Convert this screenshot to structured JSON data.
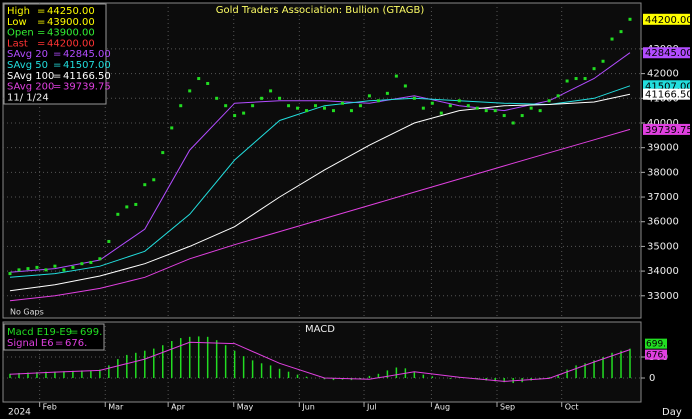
{
  "chart_data": [
    {
      "type": "price",
      "title": "Gold Traders Association: Bullion (GTAGB)",
      "date": "11/ 1/24",
      "note": "No Gaps",
      "year": "2024",
      "x_label": "Day",
      "sep": "=",
      "grid": true,
      "xlim": [
        0,
        69
      ],
      "ylim": [
        32100,
        44860
      ],
      "yticks": [
        33000,
        34000,
        35000,
        36000,
        37000,
        38000,
        39000,
        40000,
        41000,
        42000,
        43000
      ],
      "xticks": [
        {
          "value": 3.3,
          "label": "Feb"
        },
        {
          "value": 10.6,
          "label": "Mar"
        },
        {
          "value": 17.6,
          "label": "Apr"
        },
        {
          "value": 24.9,
          "label": "May"
        },
        {
          "value": 32.2,
          "label": "Jun"
        },
        {
          "value": 39.4,
          "label": "Jul"
        },
        {
          "value": 46.9,
          "label": "Aug"
        },
        {
          "value": 54.2,
          "label": "Sep"
        },
        {
          "value": 61.4,
          "label": "Oct"
        }
      ],
      "color": "#22dd22",
      "values": [
        33900,
        34050,
        34100,
        34150,
        34050,
        34200,
        34050,
        34150,
        34300,
        34350,
        34500,
        35200,
        36300,
        36600,
        36700,
        37500,
        37700,
        38800,
        39800,
        40700,
        41300,
        41800,
        41600,
        41000,
        40700,
        40300,
        40400,
        40700,
        41000,
        41300,
        41000,
        40700,
        40600,
        40500,
        40700,
        40600,
        40500,
        40800,
        40500,
        40700,
        41100,
        40900,
        41200,
        41900,
        41500,
        41000,
        40600,
        40800,
        40400,
        40700,
        40900,
        40700,
        40600,
        40500,
        40500,
        40300,
        40000,
        40300,
        40600,
        40500,
        40900,
        41100,
        41700,
        41800,
        41800,
        42200,
        42500,
        43400,
        43700,
        44200
      ],
      "stats": [
        {
          "name": "High",
          "value": 44250,
          "label": "44250.00",
          "color": "#ffff00"
        },
        {
          "name": "Low",
          "value": 43900,
          "label": "43900.00",
          "color": "#ffff00"
        },
        {
          "name": "Open",
          "value": 43900,
          "label": "43900.00",
          "color": "#33ee33"
        },
        {
          "name": "Last",
          "value": 44200,
          "label": "44200.00",
          "color": "#ff3333",
          "tag_color": "#ffff00"
        }
      ],
      "series": [
        {
          "name": "SAvg 20",
          "color": "#b24cff",
          "last": 42845,
          "last_label": "42845.00",
          "x": [
            0,
            5,
            10,
            15,
            20,
            25,
            30,
            35,
            40,
            45,
            50,
            55,
            60,
            65,
            69
          ],
          "values": [
            33950,
            34100,
            34450,
            35700,
            38900,
            40800,
            40900,
            40900,
            40800,
            41100,
            40700,
            40500,
            40900,
            41800,
            42845
          ]
        },
        {
          "name": "SAvg 50",
          "color": "#22dddd",
          "last": 41507,
          "last_label": "41507.00",
          "x": [
            0,
            5,
            10,
            15,
            20,
            25,
            30,
            35,
            40,
            45,
            50,
            55,
            60,
            65,
            69
          ],
          "values": [
            33750,
            33900,
            34200,
            34800,
            36300,
            38500,
            40100,
            40700,
            40900,
            41000,
            40900,
            40800,
            40750,
            41000,
            41507
          ]
        },
        {
          "name": "SAvg 100",
          "color": "#ffffff",
          "last": 41166.5,
          "last_label": "41166.50",
          "x": [
            0,
            5,
            10,
            15,
            20,
            25,
            30,
            35,
            40,
            45,
            50,
            55,
            60,
            65,
            69
          ],
          "values": [
            33200,
            33450,
            33800,
            34300,
            35000,
            35800,
            37000,
            38100,
            39100,
            40000,
            40500,
            40700,
            40750,
            40850,
            41166.5
          ]
        },
        {
          "name": "SAvg 200",
          "color": "#e040e0",
          "last": 39739.75,
          "last_label": "39739.75",
          "x": [
            0,
            5,
            10,
            15,
            20,
            25,
            30,
            35,
            40,
            45,
            50,
            55,
            60,
            65,
            69
          ],
          "values": [
            32800,
            33000,
            33300,
            33750,
            34500,
            35070,
            35600,
            36130,
            36660,
            37200,
            37730,
            38260,
            38790,
            39320,
            39739.75
          ]
        }
      ]
    },
    {
      "type": "macd",
      "title": "MACD",
      "sep": "=",
      "xlim": [
        0,
        69
      ],
      "ylim": [
        -571,
        1333
      ],
      "yticks": [
        0,
        500
      ],
      "series": [
        {
          "name": "Macd E19-E9",
          "color": "#22dd22",
          "last": 699,
          "last_label": "699.",
          "values": [
            100,
            120,
            130,
            140,
            150,
            150,
            160,
            170,
            180,
            180,
            200,
            300,
            450,
            550,
            600,
            650,
            700,
            780,
            880,
            950,
            980,
            990,
            980,
            900,
            780,
            650,
            520,
            420,
            350,
            300,
            220,
            150,
            80,
            30,
            0,
            -30,
            -50,
            -40,
            -50,
            -20,
            50,
            100,
            180,
            250,
            230,
            150,
            80,
            40,
            0,
            -20,
            20,
            10,
            -30,
            -60,
            -80,
            -100,
            -120,
            -100,
            -60,
            -30,
            20,
            80,
            200,
            300,
            350,
            420,
            500,
            600,
            650,
            699
          ]
        },
        {
          "name": "Signal E6",
          "color": "#e040e0",
          "last": 676,
          "last_label": "676.",
          "x": [
            0,
            5,
            10,
            15,
            20,
            25,
            30,
            35,
            40,
            45,
            50,
            55,
            60,
            65,
            69
          ],
          "values": [
            90,
            140,
            180,
            450,
            850,
            820,
            350,
            0,
            -30,
            150,
            20,
            -80,
            -10,
            380,
            676
          ]
        }
      ]
    }
  ]
}
